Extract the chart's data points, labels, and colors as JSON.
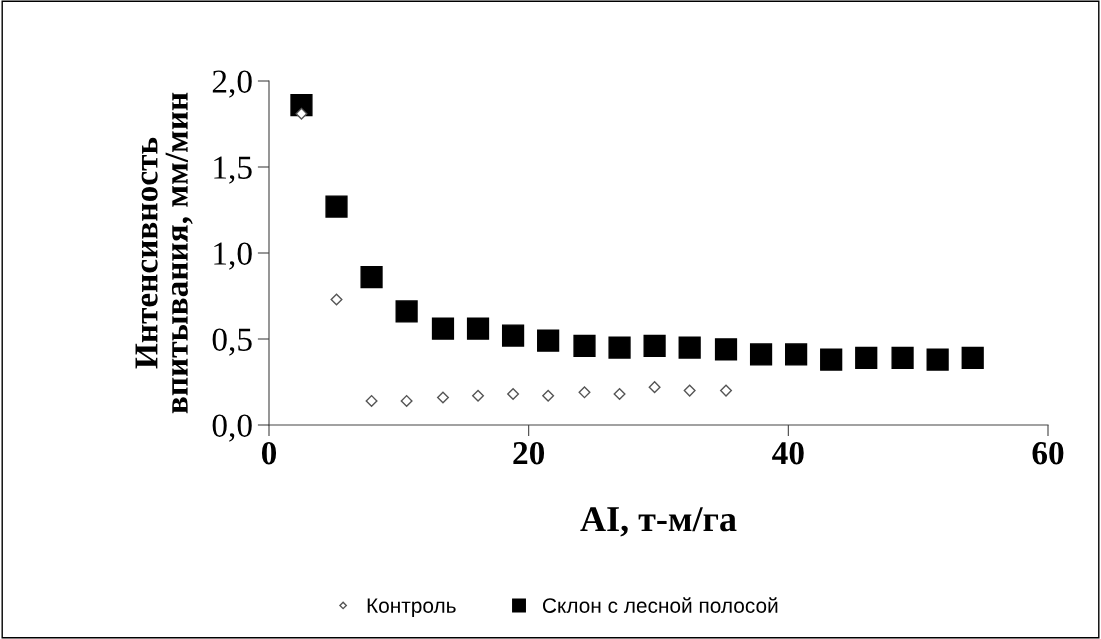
{
  "chart_data": {
    "type": "scatter",
    "xlabel": "AI, т-м/га",
    "ylabel": "Интенсивность впитывания, мм/мин",
    "xlim": [
      0,
      60
    ],
    "xticks": [
      0,
      20,
      40,
      60
    ],
    "ylim": [
      0,
      2
    ],
    "yticks": [
      {
        "value": 0,
        "label": "0,0"
      },
      {
        "value": 0.5,
        "label": "0,5"
      },
      {
        "value": 1.0,
        "label": "1,0"
      },
      {
        "value": 1.5,
        "label": "1,5"
      },
      {
        "value": 2.0,
        "label": "2,0"
      }
    ],
    "grid": false,
    "legend": "bottom",
    "series": [
      {
        "name": "Контроль",
        "color": "#ffffff",
        "marker": "diamond",
        "x": [
          2.5,
          5.2,
          7.9,
          10.6,
          13.4,
          16.1,
          18.8,
          21.5,
          24.3,
          27.0,
          29.7,
          32.4,
          35.2
        ],
        "values": [
          1.81,
          0.73,
          0.14,
          0.14,
          0.16,
          0.17,
          0.18,
          0.17,
          0.19,
          0.18,
          0.22,
          0.2,
          0.2
        ]
      },
      {
        "name": "Склон с лесной полосой",
        "color": "#000000",
        "marker": "square",
        "x": [
          2.5,
          5.2,
          7.9,
          10.6,
          13.4,
          16.1,
          18.8,
          21.5,
          24.3,
          27.0,
          29.7,
          32.4,
          35.2,
          37.9,
          40.6,
          43.3,
          46.0,
          48.8,
          51.5,
          54.2
        ],
        "values": [
          1.86,
          1.27,
          0.86,
          0.66,
          0.56,
          0.56,
          0.52,
          0.49,
          0.46,
          0.45,
          0.46,
          0.45,
          0.44,
          0.41,
          0.41,
          0.38,
          0.39,
          0.39,
          0.38,
          0.39
        ]
      }
    ]
  }
}
